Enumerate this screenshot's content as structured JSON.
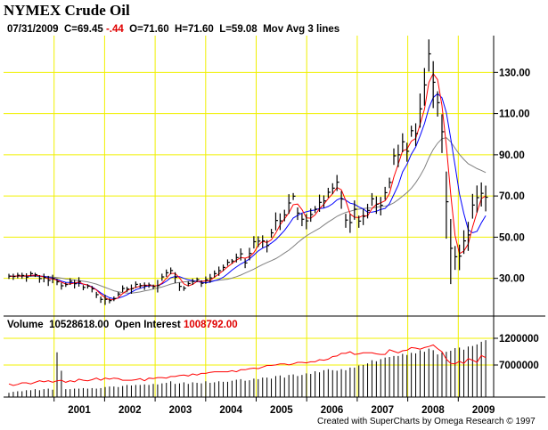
{
  "header": {
    "title": "NYMEX Crude Oil",
    "info_prefix": "07/31/2009  C=69.45 ",
    "info_change": "-.44",
    "info_suffix": "  O=71.60  H=71.60  L=59.08  Mov Avg 3 lines"
  },
  "volume_header": {
    "volume_label": "Volume  10528618.00  Open Interest ",
    "open_interest_value": "1008792.00"
  },
  "footer": {
    "credit": "Created with SuperCharts by Omega Research © 1997"
  },
  "colors": {
    "grid": "#f0f000",
    "price_bar": "#000000",
    "ma_fast": "#ff0000",
    "ma_mid": "#0000ff",
    "ma_slow": "#808080",
    "open_interest": "#ff0000",
    "volume_bar": "#000000",
    "change_text": "#e00000"
  },
  "chart_data": [
    {
      "type": "ohlc",
      "name": "price",
      "x_axis": {
        "labels": [
          "2001",
          "2002",
          "2003",
          "2004",
          "2005",
          "2006",
          "2007",
          "2008",
          "2009"
        ],
        "range": [
          2000.0,
          2009.7
        ]
      },
      "y_axis": {
        "ticks": [
          30,
          50,
          70,
          90,
          110,
          130
        ],
        "tick_labels": [
          "30.00",
          "50.00",
          "70.00",
          "90.00",
          "110.00",
          "130.00"
        ],
        "range": [
          13,
          147
        ]
      },
      "grid": true,
      "closes": [
        31.1,
        30.9,
        31.5,
        31.4,
        30.6,
        32.3,
        31.8,
        29.9,
        30.4,
        29.0,
        29.9,
        28.3,
        26.4,
        27.0,
        28.6,
        27.4,
        28.5,
        25.6,
        26.2,
        24.9,
        22.1,
        19.8,
        19.8,
        19.2,
        20.2,
        22.4,
        25.1,
        24.8,
        25.0,
        27.1,
        26.5,
        26.4,
        26.8,
        26.0,
        26.5,
        30.7,
        32.7,
        33.8,
        30.6,
        26.1,
        25.2,
        27.5,
        28.5,
        29.4,
        27.6,
        29.3,
        30.2,
        32.3,
        33.7,
        35.3,
        37.8,
        38.4,
        40.1,
        41.9,
        37.5,
        42.1,
        47.8,
        48.1,
        48.2,
        45.9,
        52.1,
        58.1,
        57.9,
        60.8,
        66.6,
        69.9,
        61.7,
        58.7,
        57.9,
        61.0,
        63.6,
        66.9,
        67.6,
        71.8,
        73.8,
        76.7,
        68.5,
        58.3,
        57.1,
        63.6,
        57.8,
        60.1,
        63.0,
        68.6,
        66.0,
        65.5,
        71.6,
        76.6,
        89.5,
        90.0,
        96.3,
        91.7,
        101.7,
        100.3,
        112.3,
        123.9,
        139.0,
        125.2,
        115.3,
        101.2,
        67.2,
        44.6,
        40.5,
        40.8,
        48.2,
        51.1,
        65.6,
        69.2,
        71.3,
        69.4
      ],
      "ranges": [
        2.5,
        3.0,
        2.7,
        2.9,
        4.1,
        2.4,
        2.0,
        3.7,
        4.2,
        4.9,
        4.1,
        2.9,
        3.4,
        2.1,
        3.2,
        4.2,
        4.6,
        2.5,
        2.1,
        3.1,
        3.0,
        3.1,
        4.9,
        2.4,
        2.3,
        2.2,
        3.3,
        2.5,
        4.5,
        3.1,
        2.5,
        3.6,
        2.5,
        2.2,
        6.1,
        3.5,
        3.6,
        3.3,
        5.3,
        4.0,
        2.3,
        2.4,
        3.0,
        2.2,
        3.2,
        3.6,
        4.3,
        3.4,
        4.5,
        3.1,
        3.1,
        2.2,
        4.3,
        5.9,
        4.6,
        6.1,
        6.0,
        5.2,
        6.0,
        6.0,
        4.3,
        8.7,
        8.1,
        5.6,
        9.5,
        3.4,
        6.1,
        6.1,
        7.4,
        6.4,
        3.4,
        8.4,
        6.0,
        4.8,
        5.3,
        7.8,
        8.6,
        6.8,
        9.1,
        9.4,
        5.9,
        7.7,
        7.1,
        6.2,
        8.5,
        9.0,
        6.3,
        5.1,
        8.0,
        10.9,
        9.2,
        9.2,
        5.4,
        11.1,
        16.6,
        18.3,
        15.6,
        22.8,
        12.3,
        18.8,
        32.6,
        31.6,
        11.6,
        12.4,
        11.5,
        14.1,
        12.0,
        13.1,
        11.7,
        12.5
      ],
      "overlays": [
        {
          "name": "Mov Avg 1",
          "color": "#ff0000",
          "values": [
            31.1,
            31.0,
            31.2,
            31.3,
            31.2,
            31.4,
            31.6,
            31.3,
            30.7,
            29.8,
            29.8,
            29.1,
            28.2,
            27.2,
            27.3,
            27.7,
            28.2,
            27.2,
            26.8,
            25.6,
            24.4,
            22.3,
            20.6,
            19.6,
            19.7,
            20.6,
            22.6,
            24.1,
            25.0,
            25.6,
            26.2,
            26.7,
            26.6,
            26.4,
            26.4,
            27.7,
            30.0,
            32.4,
            32.4,
            30.2,
            27.3,
            26.3,
            27.1,
            28.5,
            28.5,
            28.8,
            29.0,
            30.6,
            32.1,
            33.8,
            35.6,
            37.2,
            38.8,
            40.1,
            39.8,
            40.5,
            42.5,
            46.0,
            48.0,
            47.4,
            48.7,
            52.0,
            56.0,
            58.9,
            61.8,
            65.8,
            66.1,
            63.4,
            59.4,
            59.2,
            60.8,
            63.8,
            66.0,
            68.8,
            71.1,
            74.1,
            73.0,
            67.8,
            61.3,
            59.7,
            59.5,
            60.5,
            60.3,
            63.9,
            65.9,
            66.7,
            67.7,
            71.2,
            79.2,
            85.4,
            91.9,
            92.7,
            96.6,
            97.9,
            104.8,
            112.2,
            125.1,
            129.4,
            126.5,
            113.9,
            94.5,
            71.0,
            50.8,
            42.0,
            43.2,
            46.7,
            55.0,
            62.0,
            68.7,
            70.0
          ]
        },
        {
          "name": "Mov Avg 2",
          "color": "#0000ff",
          "values": [
            31.1,
            31.0,
            31.2,
            31.2,
            31.1,
            31.3,
            31.4,
            31.1,
            31.0,
            30.5,
            30.2,
            29.6,
            28.7,
            28.1,
            28.0,
            27.8,
            27.6,
            27.2,
            26.8,
            25.9,
            24.5,
            23.0,
            21.7,
            20.6,
            20.1,
            20.4,
            21.1,
            22.0,
            23.3,
            24.5,
            25.2,
            25.9,
            26.4,
            26.3,
            26.5,
            27.3,
            28.6,
            30.3,
            30.9,
            30.8,
            30.0,
            29.3,
            28.8,
            28.5,
            28.1,
            27.8,
            28.2,
            28.8,
            29.5,
            30.5,
            32.2,
            34.0,
            35.5,
            37.0,
            38.1,
            39.4,
            41.3,
            43.3,
            44.7,
            45.7,
            47.1,
            48.8,
            51.0,
            53.3,
            56.2,
            59.3,
            60.6,
            61.7,
            62.3,
            62.9,
            63.2,
            63.9,
            64.1,
            64.9,
            66.2,
            68.1,
            69.0,
            68.0,
            66.5,
            66.0,
            64.7,
            63.8,
            62.1,
            62.2,
            62.6,
            63.5,
            63.9,
            66.2,
            70.7,
            75.2,
            81.7,
            85.3,
            90.3,
            93.8,
            99.3,
            105.1,
            112.7,
            117.8,
            119.7,
            117.7,
            110.5,
            98.0,
            84.8,
            71.1,
            61.6,
            53.6,
            52.1,
            52.8,
            56.9,
            60.4
          ]
        },
        {
          "name": "Mov Avg 3",
          "color": "#808080",
          "values": [
            31.1,
            31.0,
            31.0,
            31.0,
            31.0,
            31.0,
            31.0,
            30.9,
            30.9,
            30.8,
            30.6,
            30.4,
            30.1,
            29.7,
            29.5,
            29.2,
            28.9,
            28.6,
            28.3,
            27.8,
            27.2,
            26.4,
            25.6,
            24.8,
            24.0,
            23.5,
            23.1,
            22.9,
            22.8,
            23.1,
            23.4,
            23.9,
            24.3,
            24.8,
            25.3,
            25.8,
            26.5,
            27.2,
            27.7,
            28.0,
            28.3,
            28.5,
            28.6,
            28.6,
            28.6,
            28.6,
            28.7,
            28.9,
            29.1,
            29.3,
            29.6,
            30.1,
            30.8,
            31.6,
            32.6,
            33.5,
            34.5,
            35.6,
            36.7,
            37.7,
            38.6,
            39.6,
            40.9,
            42.3,
            43.7,
            45.4,
            47.3,
            49.0,
            50.6,
            51.9,
            53.1,
            54.3,
            55.9,
            57.4,
            58.7,
            60.1,
            61.1,
            62.0,
            62.6,
            63.2,
            63.6,
            63.9,
            64.1,
            64.2,
            64.5,
            64.9,
            65.0,
            65.6,
            66.7,
            68.2,
            69.9,
            71.6,
            73.7,
            76.4,
            79.8,
            83.6,
            88.5,
            92.6,
            95.6,
            97.8,
            98.3,
            96.3,
            93.2,
            90.2,
            87.8,
            85.6,
            84.5,
            83.3,
            82.4,
            81.4
          ]
        }
      ]
    },
    {
      "type": "bar",
      "name": "volume",
      "y_axis": {
        "tick_labels": [
          "1200000",
          "7000000"
        ]
      },
      "volume_values": [
        0.08,
        0.1,
        0.11,
        0.11,
        0.13,
        0.13,
        0.15,
        0.13,
        0.15,
        0.16,
        0.14,
        0.85,
        0.5,
        0.15,
        0.15,
        0.16,
        0.16,
        0.17,
        0.16,
        0.17,
        0.16,
        0.17,
        0.19,
        0.2,
        0.2,
        0.19,
        0.21,
        0.23,
        0.22,
        0.23,
        0.23,
        0.24,
        0.23,
        0.25,
        0.24,
        0.26,
        0.27,
        0.3,
        0.25,
        0.26,
        0.28,
        0.25,
        0.28,
        0.27,
        0.26,
        0.3,
        0.27,
        0.28,
        0.3,
        0.29,
        0.29,
        0.31,
        0.33,
        0.34,
        0.31,
        0.32,
        0.35,
        0.34,
        0.37,
        0.37,
        0.35,
        0.4,
        0.41,
        0.37,
        0.42,
        0.43,
        0.4,
        0.42,
        0.45,
        0.44,
        0.49,
        0.47,
        0.51,
        0.53,
        0.51,
        0.5,
        0.53,
        0.51,
        0.56,
        0.56,
        0.6,
        0.61,
        0.64,
        0.7,
        0.68,
        0.72,
        0.75,
        0.76,
        0.78,
        0.78,
        0.82,
        0.8,
        0.84,
        0.83,
        0.89,
        0.86,
        0.92,
        0.89,
        0.81,
        0.85,
        0.86,
        0.88,
        0.93,
        0.94,
        0.9,
        0.96,
        0.97,
        1.0,
        1.05,
        1.08
      ],
      "open_interest_values": [
        0.25,
        0.22,
        0.24,
        0.27,
        0.27,
        0.25,
        0.28,
        0.31,
        0.29,
        0.31,
        0.28,
        0.31,
        0.32,
        0.28,
        0.31,
        0.29,
        0.34,
        0.32,
        0.31,
        0.33,
        0.36,
        0.32,
        0.36,
        0.34,
        0.36,
        0.35,
        0.32,
        0.32,
        0.32,
        0.33,
        0.35,
        0.31,
        0.36,
        0.35,
        0.37,
        0.37,
        0.36,
        0.39,
        0.39,
        0.41,
        0.42,
        0.4,
        0.44,
        0.42,
        0.45,
        0.45,
        0.47,
        0.48,
        0.48,
        0.48,
        0.48,
        0.5,
        0.48,
        0.52,
        0.52,
        0.54,
        0.55,
        0.54,
        0.57,
        0.6,
        0.6,
        0.61,
        0.63,
        0.63,
        0.61,
        0.63,
        0.66,
        0.66,
        0.65,
        0.67,
        0.67,
        0.71,
        0.7,
        0.72,
        0.77,
        0.78,
        0.83,
        0.83,
        0.86,
        0.81,
        0.82,
        0.84,
        0.84,
        0.84,
        0.82,
        0.81,
        0.81,
        0.9,
        0.87,
        0.84,
        0.88,
        0.89,
        0.94,
        0.93,
        0.91,
        0.94,
        0.96,
        0.99,
        0.92,
        0.86,
        0.72,
        0.64,
        0.63,
        0.68,
        0.64,
        0.73,
        0.7,
        0.66,
        0.79,
        0.75
      ]
    }
  ]
}
